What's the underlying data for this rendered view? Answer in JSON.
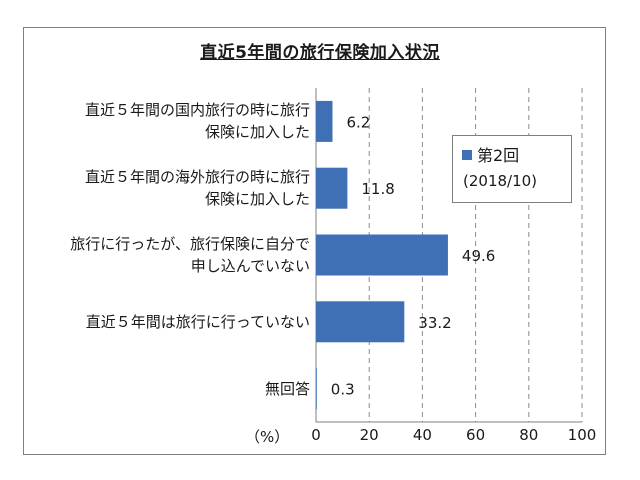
{
  "chart_data": {
    "type": "bar",
    "orientation": "horizontal",
    "title": "直近5年間の旅行保険加入状況",
    "x_unit_label": "（%）",
    "xlim": [
      0,
      100
    ],
    "xticks": [
      0,
      20,
      40,
      60,
      80,
      100
    ],
    "grid": "vertical dashed",
    "legend_position": "right",
    "categories": [
      [
        "直近５年間の国内旅行の時に旅行",
        "保険に加入した"
      ],
      [
        "直近５年間の海外旅行の時に旅行",
        "保険に加入した"
      ],
      [
        "旅行に行ったが、旅行保険に自分で",
        "申し込んでいない"
      ],
      [
        "直近５年間は旅行に行っていない"
      ],
      [
        "無回答"
      ]
    ],
    "series": [
      {
        "name": "第2回",
        "name_sub": "(2018/10)",
        "color": "#3f6fb4",
        "values": [
          6.2,
          11.8,
          49.6,
          33.2,
          0.3
        ],
        "value_labels": [
          "6.2",
          "11.8",
          "49.6",
          "33.2",
          "0.3"
        ]
      }
    ]
  }
}
